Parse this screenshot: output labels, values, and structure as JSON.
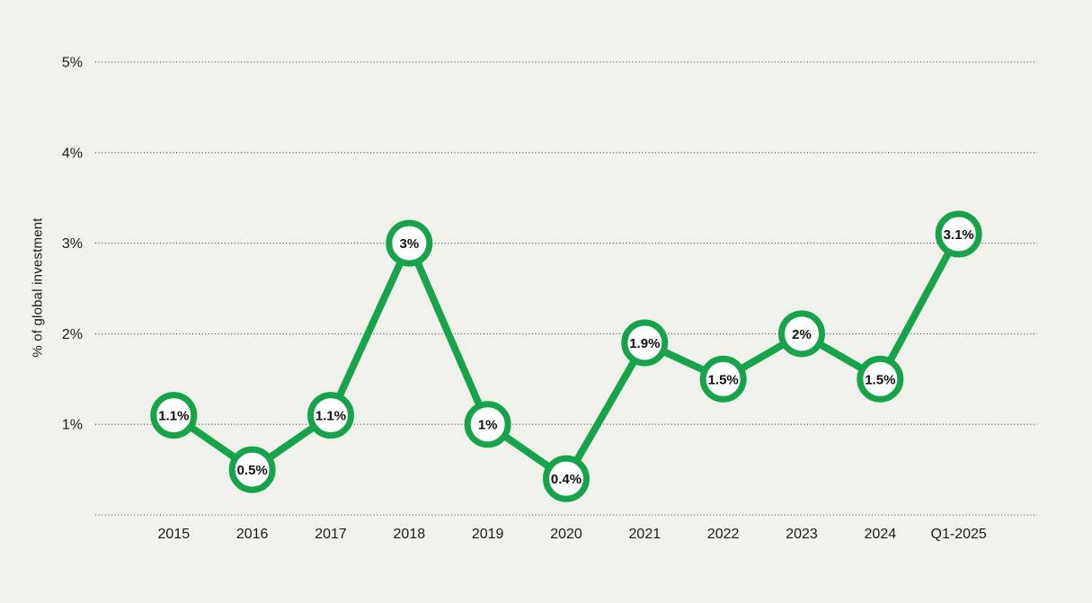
{
  "chart_data": {
    "type": "line",
    "title": "",
    "xlabel": "",
    "ylabel": "% of global investment",
    "categories": [
      "2015",
      "2016",
      "2017",
      "2018",
      "2019",
      "2020",
      "2021",
      "2022",
      "2023",
      "2024",
      "Q1-2025"
    ],
    "values": [
      1.1,
      0.5,
      1.1,
      3,
      1,
      0.4,
      1.9,
      1.5,
      2,
      1.5,
      3.1
    ],
    "point_labels": [
      "1.1%",
      "0.5%",
      "1.1%",
      "3%",
      "1%",
      "0.4%",
      "1.9%",
      "1.5%",
      "2%",
      "1.5%",
      "3.1%"
    ],
    "y_ticks": [
      {
        "value": 1,
        "label": "1%"
      },
      {
        "value": 2,
        "label": "2%"
      },
      {
        "value": 3,
        "label": "3%"
      },
      {
        "value": 4,
        "label": "4%"
      },
      {
        "value": 5,
        "label": "5%"
      }
    ],
    "ylim": [
      0,
      5
    ],
    "grid": "horizontal-dotted",
    "legend": "none",
    "colors": {
      "line": "#16a34a",
      "marker_fill": "#ffffff",
      "marker_ring": "#16a34a",
      "background": "#f1f1ec",
      "text": "#1b1b18",
      "gridline": "#45453f"
    }
  }
}
